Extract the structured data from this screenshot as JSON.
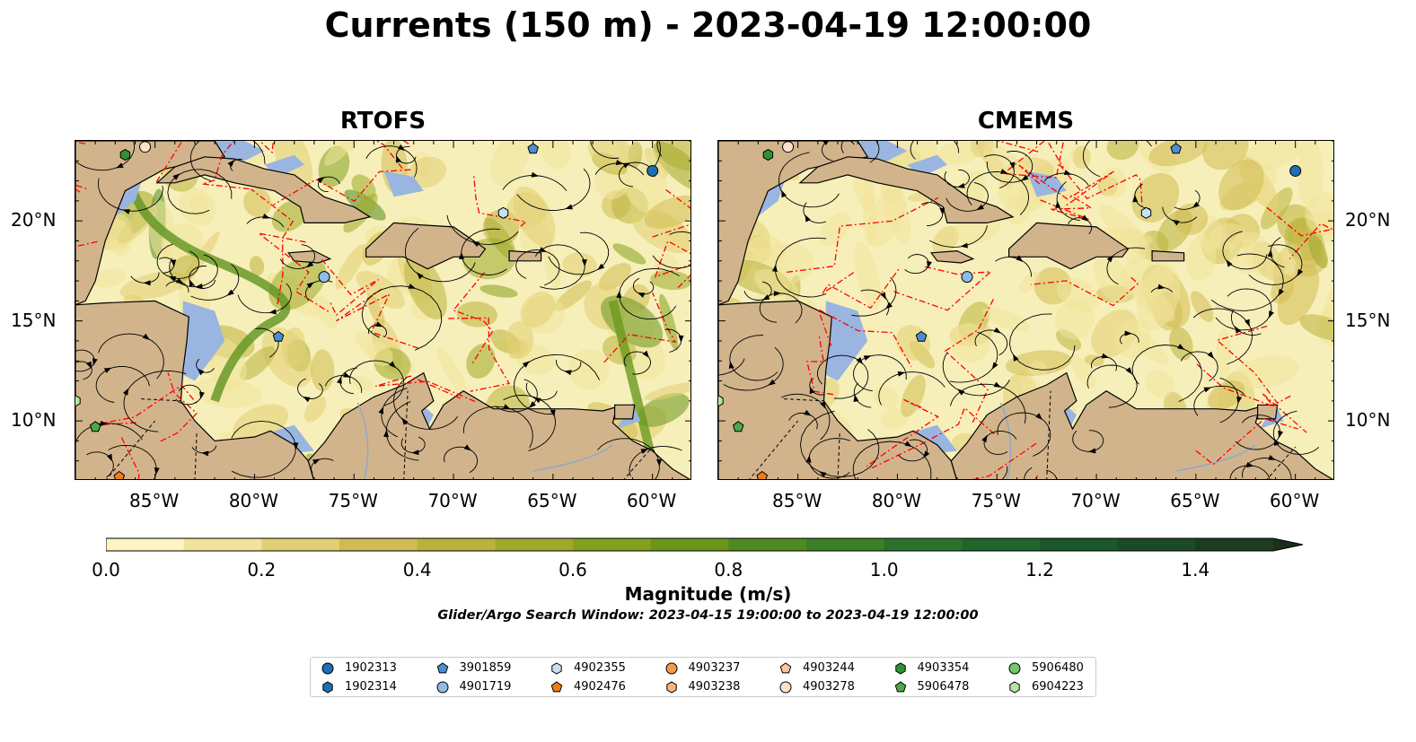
{
  "title": "Currents (150 m) - 2023-04-19 12:00:00",
  "panels": [
    {
      "title": "RTOFS"
    },
    {
      "title": "CMEMS"
    }
  ],
  "map": {
    "lon_range": [
      -89,
      -58
    ],
    "lat_range": [
      7,
      24
    ],
    "x_ticks": [
      "85°W",
      "80°W",
      "75°W",
      "70°W",
      "65°W",
      "60°W"
    ],
    "y_ticks": [
      "20°N",
      "15°N",
      "10°N"
    ],
    "colors": {
      "land": "#d2b48c",
      "shallow": "#9ab5e0",
      "current_low": "#f7efb9",
      "eez": "#ff0000"
    }
  },
  "colorbar": {
    "label": "Magnitude (m/s)",
    "ticks": [
      "0.0",
      "0.2",
      "0.4",
      "0.6",
      "0.8",
      "1.0",
      "1.2",
      "1.4"
    ],
    "min": 0.0,
    "max": 1.5,
    "extend": "max",
    "colors": [
      "#fdf5c3",
      "#f1e39a",
      "#e2cf75",
      "#d1bb52",
      "#b9b33c",
      "#9fa92a",
      "#84a01f",
      "#6a961e",
      "#4f8a21",
      "#3b7f26",
      "#2a722b",
      "#1f652c",
      "#1a572a",
      "#1a4a26",
      "#1b3c21",
      "#1c2f1b"
    ]
  },
  "search_window": "Glider/Argo Search Window: 2023-04-15 19:00:00 to 2023-04-19 12:00:00",
  "legend": [
    {
      "label": "1902313",
      "marker": "circle",
      "color": "#1f6fb4"
    },
    {
      "label": "1902314",
      "marker": "hexagon",
      "color": "#1f6fb4"
    },
    {
      "label": "3901859",
      "marker": "pentagon",
      "color": "#4a8ed0"
    },
    {
      "label": "4901719",
      "marker": "circle",
      "color": "#8dbde6"
    },
    {
      "label": "4902355",
      "marker": "hexagon",
      "color": "#c6e0f5"
    },
    {
      "label": "4902476",
      "marker": "pentagon",
      "color": "#f07c14"
    },
    {
      "label": "4903237",
      "marker": "circle",
      "color": "#f59a45"
    },
    {
      "label": "4903238",
      "marker": "hexagon",
      "color": "#f8b27a"
    },
    {
      "label": "4903244",
      "marker": "pentagon",
      "color": "#fbc49c"
    },
    {
      "label": "4903278",
      "marker": "circle",
      "color": "#fde1c8"
    },
    {
      "label": "4903354",
      "marker": "hexagon",
      "color": "#2e9132"
    },
    {
      "label": "5906478",
      "marker": "pentagon",
      "color": "#49ab47"
    },
    {
      "label": "5906480",
      "marker": "circle",
      "color": "#72c66c"
    },
    {
      "label": "6904223",
      "marker": "hexagon",
      "color": "#b6e3a8"
    }
  ]
}
